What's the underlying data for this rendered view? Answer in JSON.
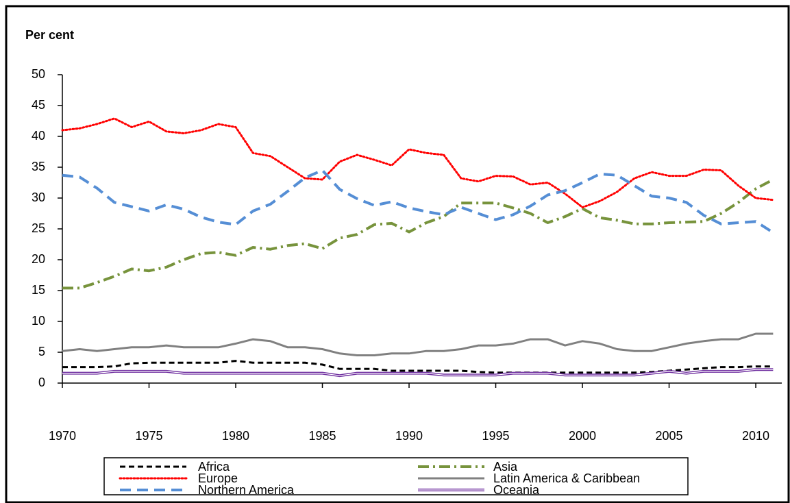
{
  "chart_data": {
    "type": "line",
    "y_label": "Per cent",
    "x": [
      1970,
      1971,
      1972,
      1973,
      1974,
      1975,
      1976,
      1977,
      1978,
      1979,
      1980,
      1981,
      1982,
      1983,
      1984,
      1985,
      1986,
      1987,
      1988,
      1989,
      1990,
      1991,
      1992,
      1993,
      1994,
      1995,
      1996,
      1997,
      1998,
      1999,
      2000,
      2001,
      2002,
      2003,
      2004,
      2005,
      2006,
      2007,
      2008,
      2009,
      2010,
      2011
    ],
    "xlim": [
      1970,
      2011.5
    ],
    "xticks": [
      1970,
      1975,
      1980,
      1985,
      1990,
      1995,
      2000,
      2005,
      2010
    ],
    "ylim": [
      0,
      50
    ],
    "yticks": [
      0,
      5,
      10,
      15,
      20,
      25,
      30,
      35,
      40,
      45,
      50
    ],
    "legend": "bottom",
    "series": [
      {
        "name": "Africa",
        "color": "#000000",
        "style": "dashed",
        "values": [
          2.6,
          2.6,
          2.6,
          2.7,
          3.2,
          3.3,
          3.3,
          3.3,
          3.3,
          3.3,
          3.6,
          3.3,
          3.3,
          3.3,
          3.3,
          3.0,
          2.3,
          2.3,
          2.3,
          2.0,
          2.0,
          2.0,
          2.0,
          2.0,
          1.8,
          1.7,
          1.7,
          1.7,
          1.7,
          1.7,
          1.7,
          1.7,
          1.7,
          1.7,
          1.8,
          2.0,
          2.2,
          2.4,
          2.6,
          2.6,
          2.7,
          2.7
        ]
      },
      {
        "name": "Asia",
        "color": "#77933c",
        "style": "dash-dot",
        "values": [
          15.4,
          15.4,
          16.3,
          17.3,
          18.5,
          18.2,
          18.8,
          20.0,
          21.0,
          21.2,
          20.7,
          22.0,
          21.7,
          22.3,
          22.6,
          21.8,
          23.5,
          24.1,
          25.7,
          25.9,
          24.5,
          26.0,
          27.0,
          29.2,
          29.2,
          29.2,
          28.4,
          27.5,
          26.0,
          27.0,
          28.3,
          26.8,
          26.4,
          25.8,
          25.8,
          26.0,
          26.1,
          26.2,
          27.5,
          29.3,
          31.5,
          33.0
        ]
      },
      {
        "name": "Europe",
        "color": "#ff0000",
        "style": "dotted",
        "values": [
          41.0,
          41.3,
          42.0,
          42.9,
          41.5,
          42.4,
          40.8,
          40.5,
          41.0,
          42.0,
          41.5,
          37.3,
          36.8,
          35.0,
          33.2,
          33.0,
          35.9,
          37.0,
          36.2,
          35.3,
          37.9,
          37.3,
          37.0,
          33.2,
          32.7,
          33.6,
          33.5,
          32.2,
          32.5,
          30.7,
          28.5,
          29.5,
          31.0,
          33.2,
          34.2,
          33.6,
          33.6,
          34.6,
          34.5,
          32.0,
          30.0,
          29.7
        ]
      },
      {
        "name": "Latin America & Caribbean",
        "color": "#808080",
        "style": "solid",
        "values": [
          5.2,
          5.5,
          5.2,
          5.5,
          5.8,
          5.8,
          6.1,
          5.8,
          5.8,
          5.8,
          6.4,
          7.1,
          6.8,
          5.8,
          5.8,
          5.5,
          4.8,
          4.5,
          4.5,
          4.8,
          4.8,
          5.2,
          5.2,
          5.5,
          6.1,
          6.1,
          6.4,
          7.1,
          7.1,
          6.1,
          6.8,
          6.4,
          5.5,
          5.2,
          5.2,
          5.8,
          6.4,
          6.8,
          7.1,
          7.1,
          8.0,
          8.0
        ]
      },
      {
        "name": "Northern America",
        "color": "#558ed5",
        "style": "long-dashed",
        "values": [
          33.7,
          33.4,
          31.6,
          29.3,
          28.6,
          27.9,
          28.9,
          28.2,
          26.9,
          26.1,
          25.7,
          27.9,
          29.0,
          31.1,
          33.3,
          34.5,
          31.4,
          29.9,
          28.8,
          29.4,
          28.4,
          27.8,
          27.3,
          28.5,
          27.5,
          26.5,
          27.3,
          28.7,
          30.5,
          31.2,
          32.5,
          33.9,
          33.7,
          32.0,
          30.3,
          30.0,
          29.3,
          27.2,
          25.8,
          26.0,
          26.2,
          24.4
        ]
      },
      {
        "name": "Oceania",
        "color": "#7030a0",
        "style": "double",
        "values": [
          1.6,
          1.6,
          1.6,
          1.9,
          1.9,
          1.9,
          1.9,
          1.6,
          1.6,
          1.6,
          1.6,
          1.6,
          1.6,
          1.6,
          1.6,
          1.6,
          1.2,
          1.6,
          1.6,
          1.6,
          1.6,
          1.6,
          1.3,
          1.3,
          1.3,
          1.3,
          1.6,
          1.6,
          1.6,
          1.3,
          1.3,
          1.3,
          1.3,
          1.3,
          1.6,
          1.9,
          1.6,
          1.9,
          1.9,
          1.9,
          2.2,
          2.2
        ]
      }
    ]
  }
}
